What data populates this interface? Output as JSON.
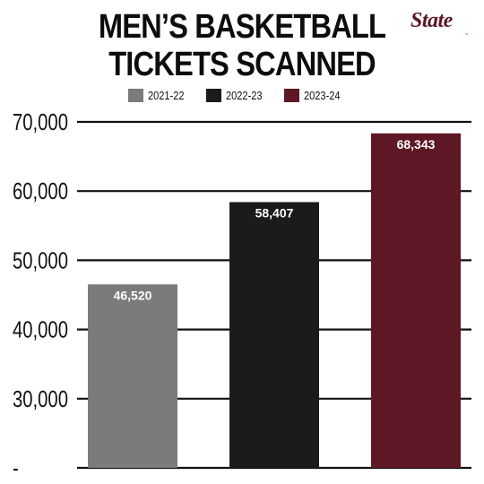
{
  "title_lines": [
    "MEN’S BASKETBALL",
    "TICKETS SCANNED"
  ],
  "logo": {
    "text": "State",
    "mark": "™"
  },
  "colors": {
    "text": "#111111",
    "gridline": "#111111",
    "series": [
      "#7b7b7b",
      "#1b1b1b",
      "#5d1725"
    ],
    "data_label": "#ffffff"
  },
  "chart_data": {
    "type": "bar",
    "title": "MEN’S BASKETBALL TICKETS SCANNED",
    "categories": [
      "2021-22",
      "2022-23",
      "2023-24"
    ],
    "values": [
      46520,
      58407,
      68343
    ],
    "data_labels": [
      "46,520",
      "58,407",
      "68,343"
    ],
    "legend": [
      "2021-22",
      "2022-23",
      "2023-24"
    ],
    "legend_position": "top-center",
    "xlabel": "",
    "ylabel": "",
    "ylim": [
      20000,
      70000
    ],
    "yticks": [
      20000,
      30000,
      40000,
      50000,
      60000,
      70000
    ],
    "ytick_labels": [
      "-",
      "30,000",
      "40,000",
      "50,000",
      "60,000",
      "70,000"
    ],
    "grid": true
  }
}
